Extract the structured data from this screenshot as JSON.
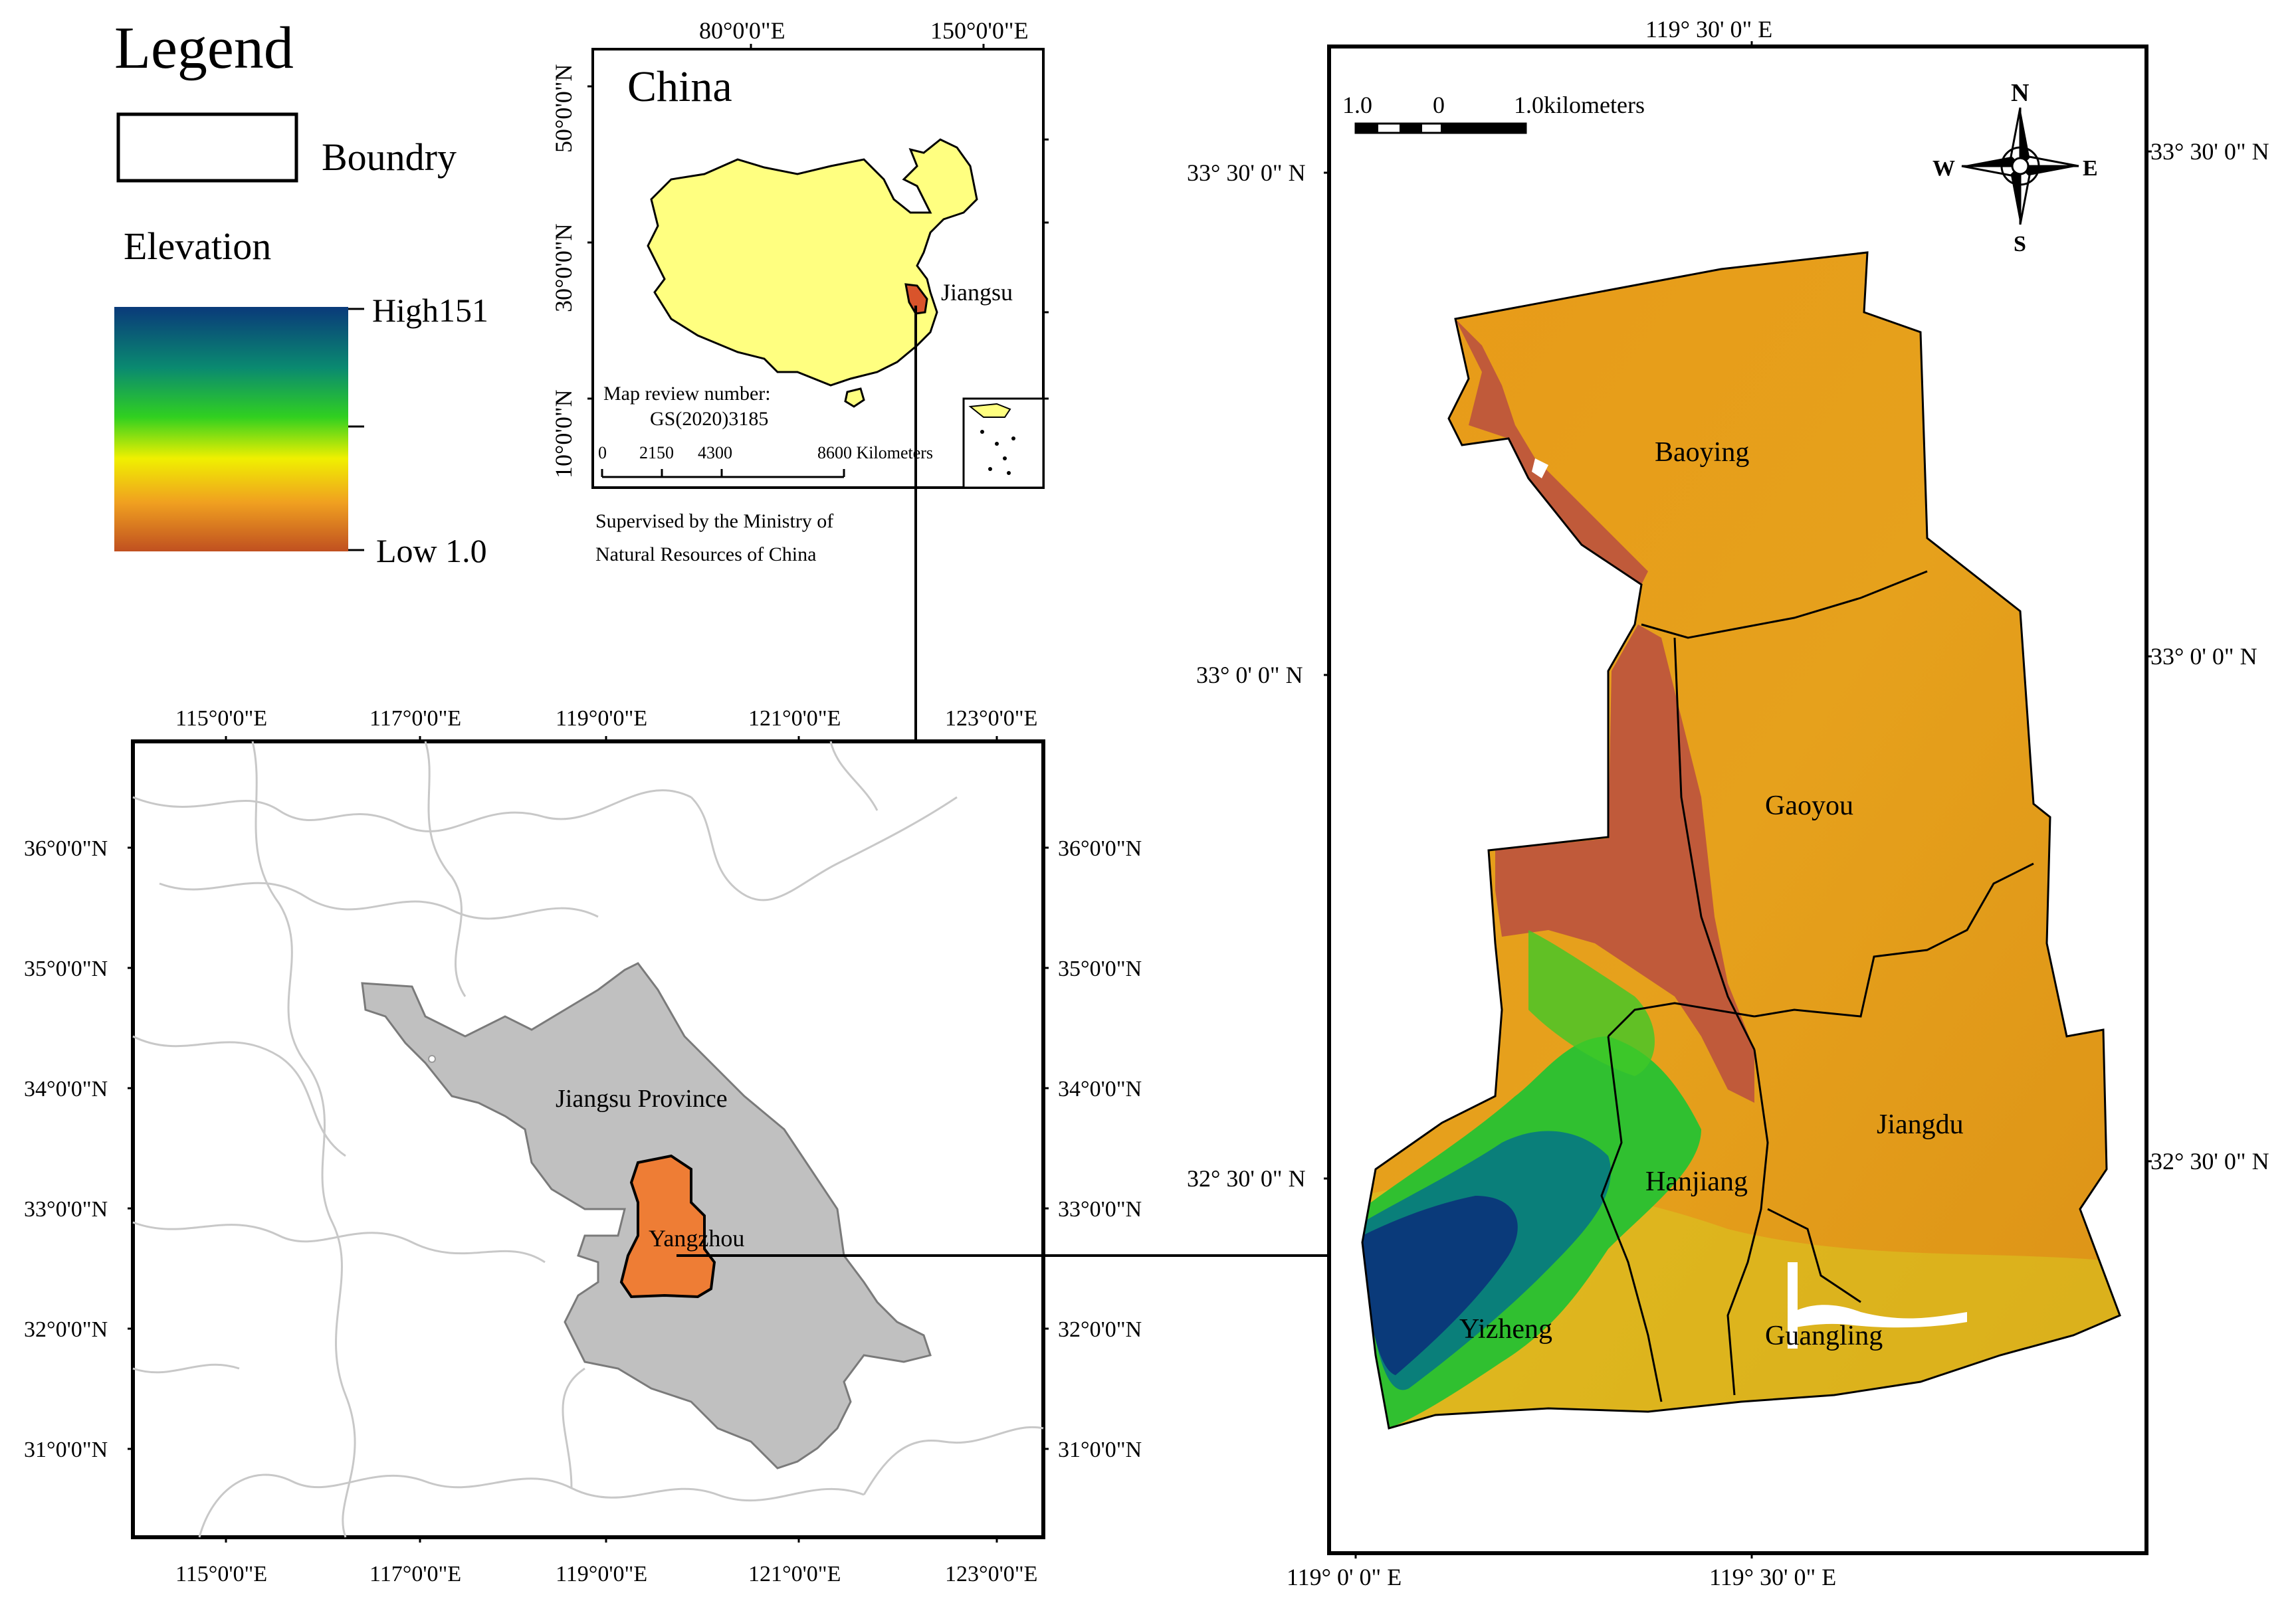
{
  "legend": {
    "title": "Legend",
    "boundary_label": "Boundry",
    "elevation_label": "Elevation",
    "high_label": "High151",
    "low_label": "Low 1.0",
    "ramp_colors": [
      "#0a3a7a",
      "#0a7f7a",
      "#20c030",
      "#e6e600",
      "#f0a020",
      "#c05020"
    ]
  },
  "inset_china": {
    "title": "China",
    "top_ticks": [
      "80°0'0\"E",
      "150°0'0\"E"
    ],
    "left_ticks": [
      "50°0'0\"N",
      "30°0'0\"N",
      "10°0'0\"N"
    ],
    "highlight_label": "Jiangsu",
    "review_line1": "Map review number:",
    "review_line2": "GS(2020)3185",
    "scale_labels": [
      "0",
      "2150",
      "4300",
      "8600 Kilometers"
    ],
    "supervised_line1": "Supervised by the Ministry of",
    "supervised_line2": "Natural Resources of China",
    "colors": {
      "land": "#ffff80",
      "jiangsu": "#d9542b"
    }
  },
  "province_map": {
    "x_ticks": [
      "115°0'0\"E",
      "117°0'0\"E",
      "119°0'0\"E",
      "121°0'0\"E",
      "123°0'0\"E"
    ],
    "y_ticks": [
      "36°0'0\"N",
      "35°0'0\"N",
      "34°0'0\"N",
      "33°0'0\"N",
      "32°0'0\"N",
      "31°0'0\"N"
    ],
    "province_label": "Jiangsu Province",
    "city_label": "Yangzhou",
    "colors": {
      "province": "#c0c0c0",
      "city": "#ee7d35"
    }
  },
  "city_map": {
    "top_tick": "119° 30' 0\" E",
    "bottom_ticks": [
      "119° 0' 0\" E",
      "119° 30' 0\" E"
    ],
    "left_ticks": [
      "33° 30' 0\" N",
      "33° 0' 0\" N",
      "32° 30' 0\" N"
    ],
    "right_ticks": [
      "33° 30' 0\" N",
      "33° 0' 0\" N",
      "32° 30' 0\" N"
    ],
    "scale_labels": [
      "1.0",
      "0",
      "1.0kilometers"
    ],
    "compass": {
      "n": "N",
      "s": "S",
      "e": "E",
      "w": "W"
    },
    "districts": [
      "Baoying",
      "Gaoyou",
      "Jiangdu",
      "Hanjiang",
      "Yizheng",
      "Guangling"
    ]
  }
}
